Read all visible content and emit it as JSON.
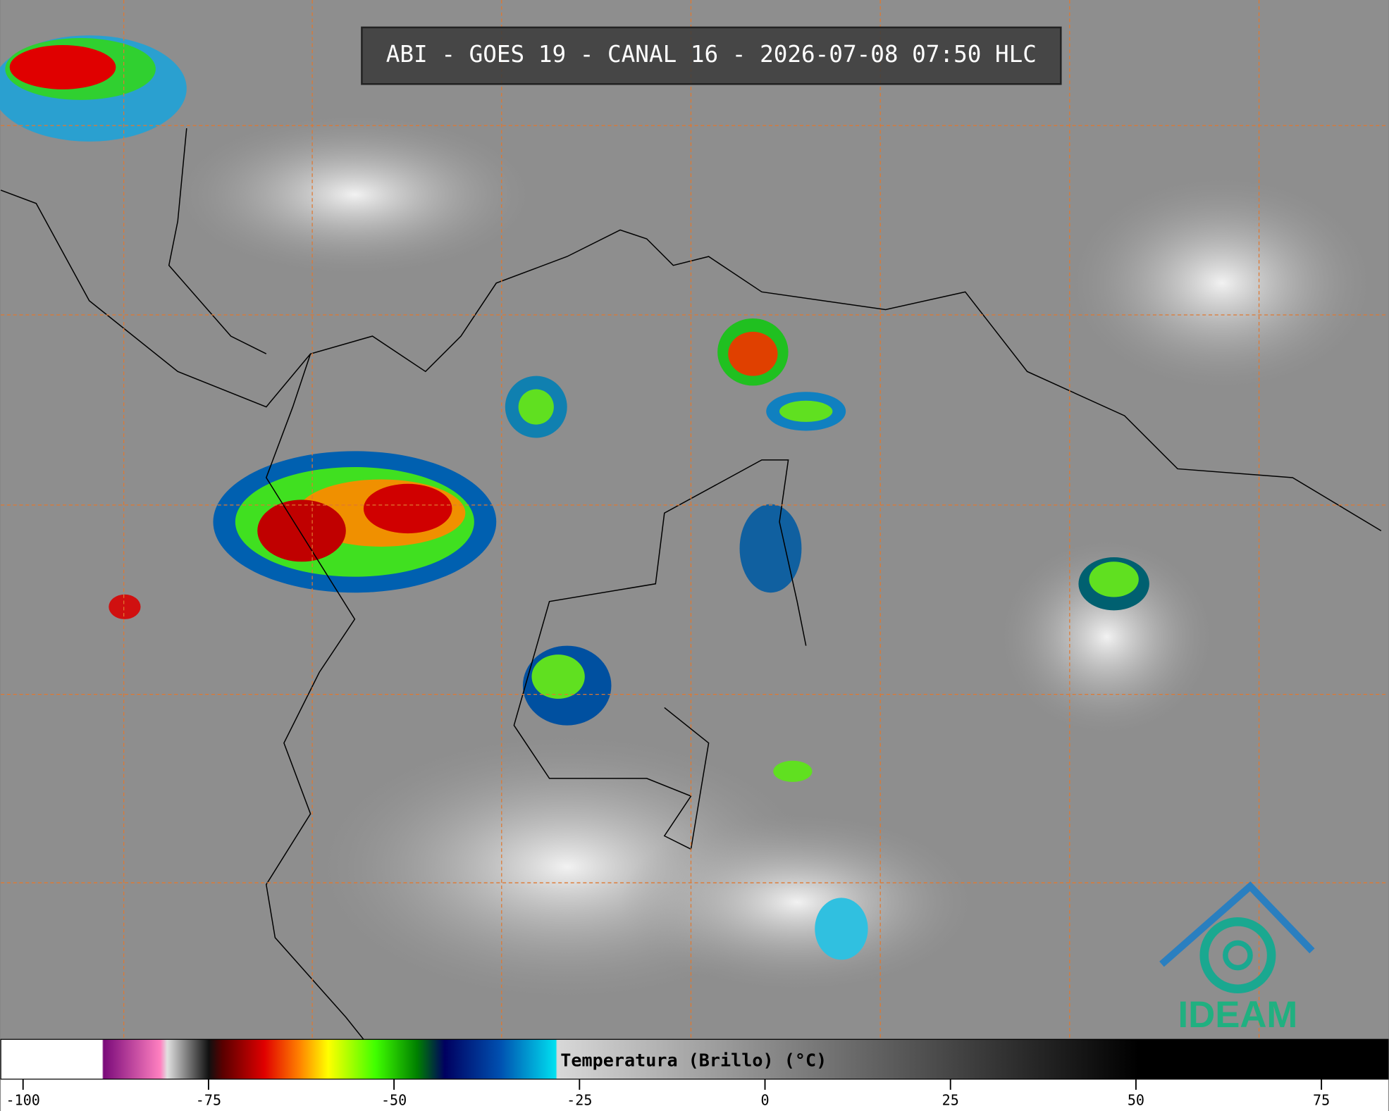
{
  "header": {
    "title": "ABI - GOES 19 - CANAL 16 - 2026-07-08 07:50 HLC"
  },
  "colorbar": {
    "label": "Temperatura (Brillo) (°C)",
    "lim": [
      -103,
      84
    ],
    "ticks": [
      -100,
      -75,
      -50,
      -25,
      0,
      25,
      50,
      75
    ]
  },
  "logo": {
    "text": "IDEAM"
  }
}
